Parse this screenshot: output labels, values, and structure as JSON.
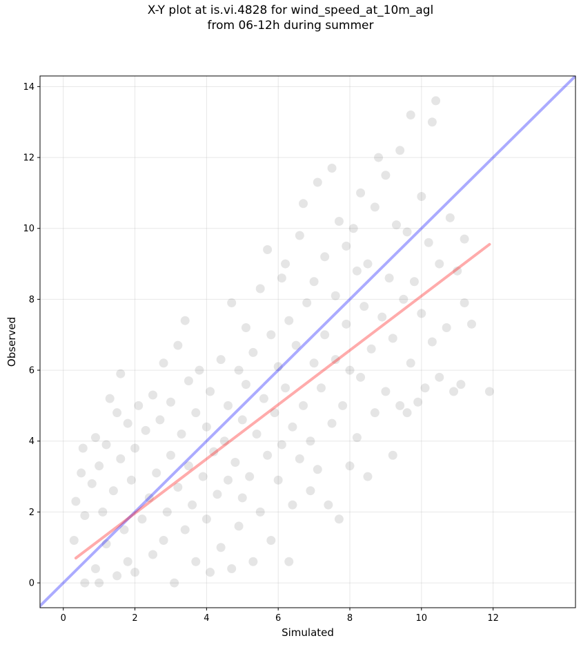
{
  "chart_data": {
    "type": "scatter",
    "title": "X-Y plot at is.vi.4828 for wind_speed_at_10m_agl",
    "subtitle": "from 06-12h during summer",
    "xlabel": "Simulated",
    "ylabel": "Observed",
    "xlim": [
      -0.65,
      14.3
    ],
    "ylim": [
      -0.7,
      14.3
    ],
    "xticks": [
      0,
      2,
      4,
      6,
      8,
      10,
      12
    ],
    "yticks": [
      0,
      2,
      4,
      6,
      8,
      10,
      12,
      14
    ],
    "grid": true,
    "point_color": "#000000",
    "point_opacity": 0.1,
    "series": [
      {
        "points": [
          [
            0.3,
            1.2
          ],
          [
            0.35,
            2.3
          ],
          [
            0.5,
            3.1
          ],
          [
            0.55,
            3.8
          ],
          [
            0.6,
            1.9
          ],
          [
            0.6,
            0.0
          ],
          [
            0.8,
            2.8
          ],
          [
            0.9,
            4.1
          ],
          [
            0.9,
            0.4
          ],
          [
            1.0,
            3.3
          ],
          [
            1.0,
            0.0
          ],
          [
            1.1,
            2.0
          ],
          [
            1.2,
            3.9
          ],
          [
            1.2,
            1.1
          ],
          [
            1.3,
            5.2
          ],
          [
            1.4,
            2.6
          ],
          [
            1.5,
            4.8
          ],
          [
            1.5,
            0.2
          ],
          [
            1.6,
            5.9
          ],
          [
            1.6,
            3.5
          ],
          [
            1.7,
            1.5
          ],
          [
            1.8,
            4.5
          ],
          [
            1.8,
            0.6
          ],
          [
            1.9,
            2.9
          ],
          [
            2.0,
            3.8
          ],
          [
            2.0,
            0.3
          ],
          [
            2.1,
            5.0
          ],
          [
            2.2,
            1.8
          ],
          [
            2.3,
            4.3
          ],
          [
            2.4,
            2.4
          ],
          [
            2.5,
            5.3
          ],
          [
            2.5,
            0.8
          ],
          [
            2.6,
            3.1
          ],
          [
            2.7,
            4.6
          ],
          [
            2.8,
            6.2
          ],
          [
            2.8,
            1.2
          ],
          [
            2.9,
            2.0
          ],
          [
            3.0,
            3.6
          ],
          [
            3.0,
            5.1
          ],
          [
            3.1,
            0.0
          ],
          [
            3.2,
            6.7
          ],
          [
            3.2,
            2.7
          ],
          [
            3.3,
            4.2
          ],
          [
            3.4,
            7.4
          ],
          [
            3.4,
            1.5
          ],
          [
            3.5,
            3.3
          ],
          [
            3.5,
            5.7
          ],
          [
            3.6,
            2.2
          ],
          [
            3.7,
            4.8
          ],
          [
            3.7,
            0.6
          ],
          [
            3.8,
            6.0
          ],
          [
            3.9,
            3.0
          ],
          [
            4.0,
            1.8
          ],
          [
            4.0,
            4.4
          ],
          [
            4.1,
            0.3
          ],
          [
            4.1,
            5.4
          ],
          [
            4.2,
            3.7
          ],
          [
            4.3,
            2.5
          ],
          [
            4.4,
            6.3
          ],
          [
            4.4,
            1.0
          ],
          [
            4.5,
            4.0
          ],
          [
            4.6,
            5.0
          ],
          [
            4.6,
            2.9
          ],
          [
            4.7,
            7.9
          ],
          [
            4.7,
            0.4
          ],
          [
            4.8,
            3.4
          ],
          [
            4.9,
            6.0
          ],
          [
            4.9,
            1.6
          ],
          [
            5.0,
            4.6
          ],
          [
            5.0,
            2.4
          ],
          [
            5.1,
            7.2
          ],
          [
            5.1,
            5.6
          ],
          [
            5.2,
            3.0
          ],
          [
            5.3,
            0.6
          ],
          [
            5.3,
            6.5
          ],
          [
            5.4,
            4.2
          ],
          [
            5.5,
            8.3
          ],
          [
            5.5,
            2.0
          ],
          [
            5.6,
            5.2
          ],
          [
            5.7,
            3.6
          ],
          [
            5.7,
            9.4
          ],
          [
            5.8,
            7.0
          ],
          [
            5.8,
            1.2
          ],
          [
            5.9,
            4.8
          ],
          [
            6.0,
            6.1
          ],
          [
            6.0,
            2.9
          ],
          [
            6.1,
            8.6
          ],
          [
            6.1,
            3.9
          ],
          [
            6.2,
            5.5
          ],
          [
            6.2,
            9.0
          ],
          [
            6.3,
            0.6
          ],
          [
            6.3,
            7.4
          ],
          [
            6.4,
            4.4
          ],
          [
            6.4,
            2.2
          ],
          [
            6.5,
            6.7
          ],
          [
            6.6,
            9.8
          ],
          [
            6.6,
            3.5
          ],
          [
            6.7,
            5.0
          ],
          [
            6.7,
            10.7
          ],
          [
            6.8,
            7.9
          ],
          [
            6.9,
            4.0
          ],
          [
            6.9,
            2.6
          ],
          [
            7.0,
            8.5
          ],
          [
            7.0,
            6.2
          ],
          [
            7.1,
            11.3
          ],
          [
            7.1,
            3.2
          ],
          [
            7.2,
            5.5
          ],
          [
            7.3,
            9.2
          ],
          [
            7.3,
            7.0
          ],
          [
            7.4,
            2.2
          ],
          [
            7.5,
            11.7
          ],
          [
            7.5,
            4.5
          ],
          [
            7.6,
            8.1
          ],
          [
            7.6,
            6.3
          ],
          [
            7.7,
            10.2
          ],
          [
            7.7,
            1.8
          ],
          [
            7.8,
            5.0
          ],
          [
            7.9,
            9.5
          ],
          [
            7.9,
            7.3
          ],
          [
            8.0,
            3.3
          ],
          [
            8.0,
            6.0
          ],
          [
            8.1,
            10.0
          ],
          [
            8.2,
            8.8
          ],
          [
            8.2,
            4.1
          ],
          [
            8.3,
            11.0
          ],
          [
            8.3,
            5.8
          ],
          [
            8.4,
            7.8
          ],
          [
            8.5,
            3.0
          ],
          [
            8.5,
            9.0
          ],
          [
            8.6,
            6.6
          ],
          [
            8.7,
            10.6
          ],
          [
            8.7,
            4.8
          ],
          [
            8.8,
            12.0
          ],
          [
            8.9,
            7.5
          ],
          [
            9.0,
            5.4
          ],
          [
            9.0,
            11.5
          ],
          [
            9.1,
            8.6
          ],
          [
            9.2,
            3.6
          ],
          [
            9.2,
            6.9
          ],
          [
            9.3,
            10.1
          ],
          [
            9.4,
            12.2
          ],
          [
            9.4,
            5.0
          ],
          [
            9.5,
            8.0
          ],
          [
            9.6,
            4.8
          ],
          [
            9.6,
            9.9
          ],
          [
            9.7,
            13.2
          ],
          [
            9.7,
            6.2
          ],
          [
            9.8,
            8.5
          ],
          [
            9.9,
            5.1
          ],
          [
            10.0,
            10.9
          ],
          [
            10.0,
            7.6
          ],
          [
            10.1,
            5.5
          ],
          [
            10.2,
            9.6
          ],
          [
            10.3,
            13.0
          ],
          [
            10.3,
            6.8
          ],
          [
            10.4,
            13.6
          ],
          [
            10.5,
            5.8
          ],
          [
            10.5,
            9.0
          ],
          [
            10.7,
            7.2
          ],
          [
            10.8,
            10.3
          ],
          [
            10.9,
            5.4
          ],
          [
            11.0,
            8.8
          ],
          [
            11.1,
            5.6
          ],
          [
            11.2,
            7.9
          ],
          [
            11.2,
            9.7
          ],
          [
            11.4,
            7.3
          ],
          [
            11.9,
            5.4
          ]
        ]
      }
    ],
    "lines": [
      {
        "x": [
          -0.65,
          14.3
        ],
        "y": [
          -0.65,
          14.3
        ],
        "color": "#0000ff",
        "opacity": 0.33
      },
      {
        "x": [
          0.35,
          11.9
        ],
        "y": [
          0.7,
          9.55
        ],
        "color": "#ff0000",
        "opacity": 0.33
      }
    ]
  }
}
